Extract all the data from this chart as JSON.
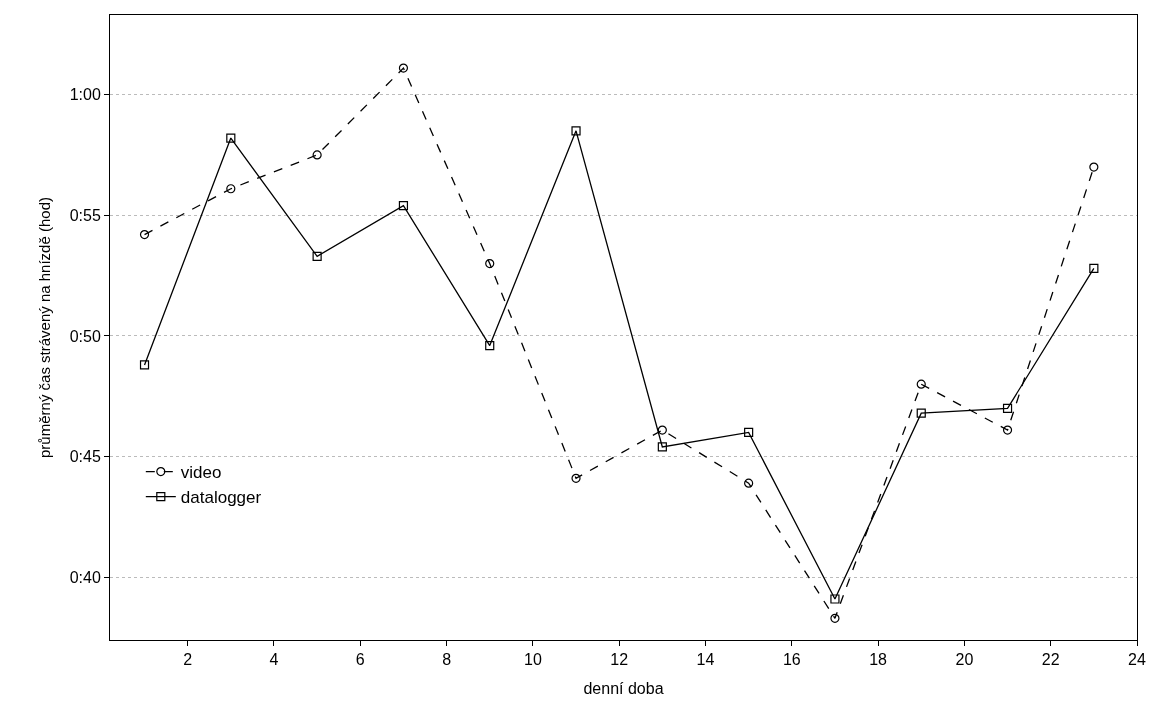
{
  "chart_data": {
    "type": "line",
    "xlabel": "denní doba",
    "ylabel": "průměrný čas strávený na hnízdě (hod)",
    "x": [
      1,
      3,
      5,
      7,
      9,
      11,
      13,
      15,
      17,
      19,
      21,
      23
    ],
    "series": [
      {
        "name": "video",
        "color": "#000000",
        "marker": "circle",
        "line_style": "dashed",
        "values": [
          54.2,
          56.1,
          57.5,
          61.1,
          53.0,
          44.1,
          46.1,
          43.9,
          38.3,
          48.0,
          46.1,
          57.0
        ]
      },
      {
        "name": "datalogger",
        "color": "#000000",
        "marker": "square",
        "line_style": "solid",
        "values": [
          48.8,
          58.2,
          53.3,
          55.4,
          49.6,
          58.5,
          45.4,
          46.0,
          39.1,
          46.8,
          47.0,
          52.8
        ]
      }
    ],
    "xlim": [
      0.2,
      24
    ],
    "xticks": [
      2,
      4,
      6,
      8,
      10,
      12,
      14,
      16,
      18,
      20,
      22,
      24
    ],
    "ylim": [
      37.4,
      63.3
    ],
    "yticks": [
      {
        "value": 40,
        "label": "0:40"
      },
      {
        "value": 45,
        "label": "0:45"
      },
      {
        "value": 50,
        "label": "0:50"
      },
      {
        "value": 55,
        "label": "0:55"
      },
      {
        "value": 60,
        "label": "1:00"
      }
    ],
    "grid": "y",
    "legend": "bottom left"
  }
}
